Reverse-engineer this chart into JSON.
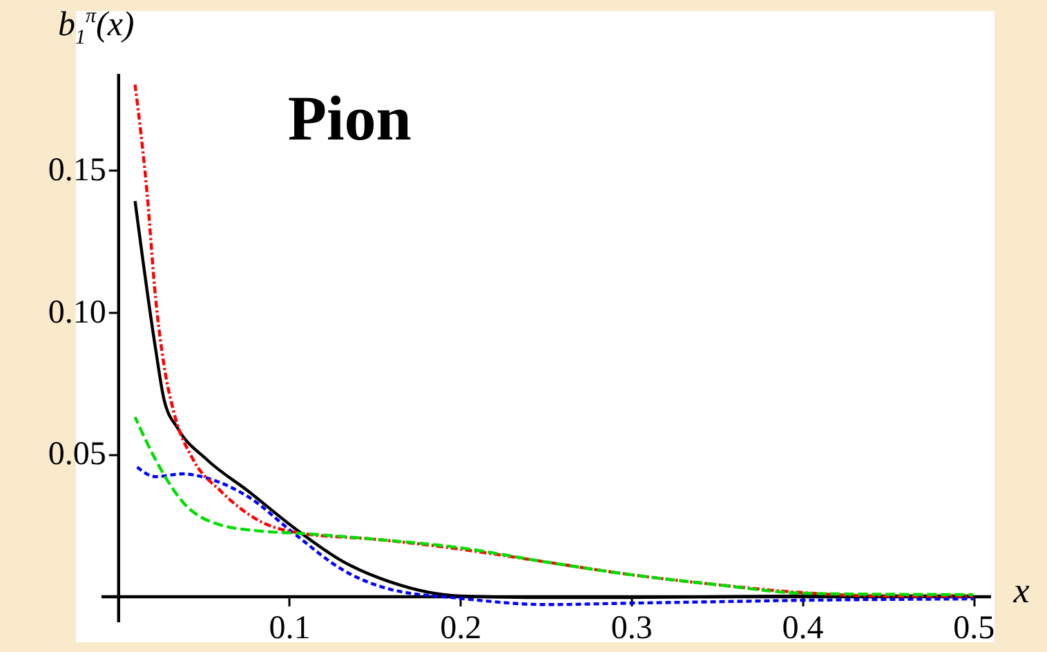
{
  "chart_data": {
    "type": "line",
    "title": "Pion",
    "xlabel": "x",
    "ylabel": "b$_{1}$$^{π}$(x)",
    "xlim": [
      -0.01,
      0.51
    ],
    "ylim": [
      -0.009,
      0.184
    ],
    "xticks": [
      0.1,
      0.2,
      0.3,
      0.4,
      0.5
    ],
    "yticks": [
      0.05,
      {
        "value": 0.1,
        "label": "0.10"
      },
      0.15
    ],
    "grid": false,
    "legend": false,
    "series": [
      {
        "color": "#000000",
        "line_style": "solid",
        "x": [
          0.01,
          0.022,
          0.027,
          0.035,
          0.052,
          0.076,
          0.103,
          0.132,
          0.159,
          0.2,
          0.25,
          0.3,
          0.4,
          0.5
        ],
        "values": [
          0.139,
          0.087,
          0.069,
          0.059,
          0.048,
          0.037,
          0.024,
          0.012,
          0.005,
          0,
          -0.0005,
          -0.0005,
          0,
          0
        ]
      },
      {
        "color": "#ff0000",
        "line_style": "dashdot",
        "x": [
          0.01,
          0.017,
          0.022,
          0.027,
          0.033,
          0.044,
          0.06,
          0.081,
          0.108,
          0.15,
          0.2,
          0.25,
          0.3,
          0.35,
          0.4,
          0.45,
          0.5
        ],
        "values": [
          0.18,
          0.142,
          0.105,
          0.081,
          0.064,
          0.048,
          0.037,
          0.027,
          0.022,
          0.02,
          0.0165,
          0.012,
          0.0075,
          0.004,
          0.0012,
          0,
          0
        ]
      },
      {
        "color": "#00dd00",
        "line_style": "dashed",
        "x": [
          0.01,
          0.022,
          0.038,
          0.06,
          0.081,
          0.108,
          0.15,
          0.2,
          0.25,
          0.3,
          0.35,
          0.4,
          0.45,
          0.5
        ],
        "values": [
          0.063,
          0.048,
          0.033,
          0.025,
          0.023,
          0.022,
          0.02,
          0.017,
          0.012,
          0.0075,
          0.004,
          0.001,
          0.0006,
          0.0005
        ]
      },
      {
        "color": "#0000ff",
        "line_style": "dotted",
        "x": [
          0.01,
          0.022,
          0.038,
          0.052,
          0.076,
          0.103,
          0.132,
          0.159,
          0.2,
          0.25,
          0.3,
          0.35,
          0.4,
          0.5
        ],
        "values": [
          0.046,
          0.042,
          0.043,
          0.0415,
          0.035,
          0.022,
          0.009,
          0.0024,
          -0.0008,
          -0.003,
          -0.0025,
          -0.002,
          -0.0015,
          -0.001
        ]
      }
    ]
  }
}
